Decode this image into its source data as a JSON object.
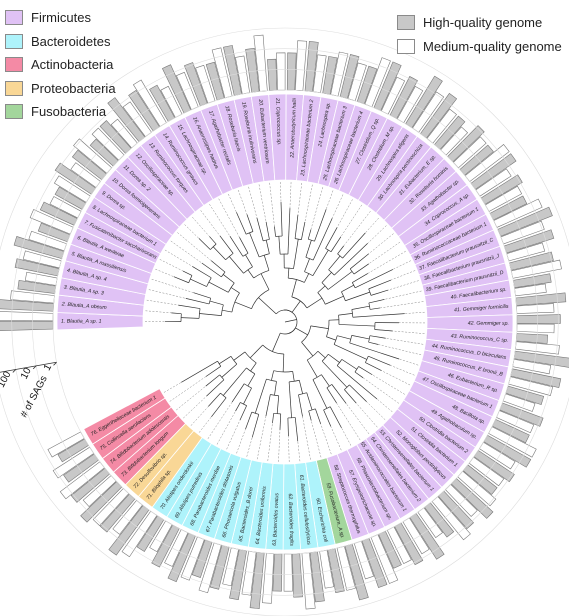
{
  "legend_phyla": [
    {
      "name": "Firmicutes",
      "color": "#e0c2f5"
    },
    {
      "name": "Bacteroidetes",
      "color": "#aef3fb"
    },
    {
      "name": "Actinobacteria",
      "color": "#f48aa5"
    },
    {
      "name": "Proteobacteria",
      "color": "#f9d796"
    },
    {
      "name": "Fusobacteria",
      "color": "#a3d69c"
    }
  ],
  "legend_quality": [
    {
      "name": "High-quality genome",
      "color": "#c8c8c8"
    },
    {
      "name": "Medium-quality genome",
      "color": "#ffffff"
    }
  ],
  "scale": {
    "ticks": [
      "1000",
      "100",
      "10",
      "1"
    ],
    "label": "# of SAGs"
  },
  "colors": {
    "bar_high": "#c8c8c8",
    "bar_medium": "#ffffff",
    "bar_stroke": "#777777",
    "tree": "#333333"
  },
  "taxa": [
    {
      "n": 1,
      "label": "1. Blautia_A sp. 1",
      "phylum": "Firmicutes",
      "high": 1,
      "med": 1
    },
    {
      "n": 2,
      "label": "2. Blautia_A obeum",
      "phylum": "Firmicutes",
      "high": 0.9,
      "med": 0.7
    },
    {
      "n": 3,
      "label": "3. Blautia_A sp. 3",
      "phylum": "Firmicutes",
      "high": 0.6,
      "med": 0.5
    },
    {
      "n": 4,
      "label": "4. Blautia_A sp. 4",
      "phylum": "Firmicutes",
      "high": 0.7,
      "med": 0.6
    },
    {
      "n": 5,
      "label": "5. Blautia_A massiliensis",
      "phylum": "Firmicutes",
      "high": 0.8,
      "med": 0.6
    },
    {
      "n": 6,
      "label": "6. Blautia_A wexlerae",
      "phylum": "Firmicutes",
      "high": 0.5,
      "med": 0.7
    },
    {
      "n": 7,
      "label": "7. Fusicatenibacter saccharivorans",
      "phylum": "Firmicutes",
      "high": 0.6,
      "med": 0.5
    },
    {
      "n": 8,
      "label": "8. Lachnospiraceae bacterium 1",
      "phylum": "Firmicutes",
      "high": 0.5,
      "med": 0.6
    },
    {
      "n": 9,
      "label": "9. Dorea sp.",
      "phylum": "Firmicutes",
      "high": 0.7,
      "med": 0.5
    },
    {
      "n": 10,
      "label": "10. Dorea formicigenerans",
      "phylum": "Firmicutes",
      "high": 0.6,
      "med": 0.7
    },
    {
      "n": 11,
      "label": "11. Dorea sp. 2",
      "phylum": "Firmicutes",
      "high": 0.5,
      "med": 0.6
    },
    {
      "n": 12,
      "label": "12. Oscillospiraceae sp.",
      "phylum": "Firmicutes",
      "high": 0.6,
      "med": 0.5
    },
    {
      "n": 13,
      "label": "13. Ruminococcus torques",
      "phylum": "Firmicutes",
      "high": 0.8,
      "med": 0.6
    },
    {
      "n": 14,
      "label": "14. Ruminococcus gnavus",
      "phylum": "Firmicutes",
      "high": 0.7,
      "med": 0.8
    },
    {
      "n": 15,
      "label": "15. Lachnospiraceae sp.",
      "phylum": "Firmicutes",
      "high": 0.6,
      "med": 0.5
    },
    {
      "n": 16,
      "label": "16. Anaerostipes hadrus",
      "phylum": "Firmicutes",
      "high": 0.8,
      "med": 0.6
    },
    {
      "n": 17,
      "label": "17. Agathobacter rectalis",
      "phylum": "Firmicutes",
      "high": 0.7,
      "med": 0.6
    },
    {
      "n": 18,
      "label": "18. Roseburia faecis",
      "phylum": "Firmicutes",
      "high": 0.6,
      "med": 0.8
    },
    {
      "n": 19,
      "label": "19. Roseburia inulinivorans",
      "phylum": "Firmicutes",
      "high": 0.8,
      "med": 0.6
    },
    {
      "n": 20,
      "label": "20. Eubacterium ventriosum",
      "phylum": "Firmicutes",
      "high": 0.7,
      "med": 0.9
    },
    {
      "n": 21,
      "label": "21. Coprococcus sp.",
      "phylum": "Firmicutes",
      "high": 0.5,
      "med": 0.6
    },
    {
      "n": 22,
      "label": "22. Anaerobutyricum hallii",
      "phylum": "Firmicutes",
      "high": 0.6,
      "med": 0.8
    },
    {
      "n": 23,
      "label": "23. Lachnospiraceae bacterium 2",
      "phylum": "Firmicutes",
      "high": 0.8,
      "med": 0.6
    },
    {
      "n": 24,
      "label": "24. Lachnospira sp.",
      "phylum": "Firmicutes",
      "high": 0.6,
      "med": 0.7
    },
    {
      "n": 25,
      "label": "25. Lachnospiraceae bacterium 3",
      "phylum": "Firmicutes",
      "high": 0.7,
      "med": 0.6
    },
    {
      "n": 26,
      "label": "26. Lachnospiraceae bacterium 4",
      "phylum": "Firmicutes",
      "high": 0.6,
      "med": 0.8
    },
    {
      "n": 27,
      "label": "27. Clostridium_Q sp.",
      "phylum": "Firmicutes",
      "high": 0.8,
      "med": 0.6
    },
    {
      "n": 28,
      "label": "28. Clostridium_M sp.",
      "phylum": "Firmicutes",
      "high": 0.7,
      "med": 0.6
    },
    {
      "n": 29,
      "label": "29. Lachnospira eligens",
      "phylum": "Firmicutes",
      "high": 0.9,
      "med": 0.7
    },
    {
      "n": 30,
      "label": "30. Lachnospira pectinoschiza",
      "phylum": "Firmicutes",
      "high": 0.8,
      "med": 0.6
    },
    {
      "n": 31,
      "label": "31. Eubacterium_E sp.",
      "phylum": "Firmicutes",
      "high": 0.6,
      "med": 0.5
    },
    {
      "n": 32,
      "label": "32. Roseburia hominis",
      "phylum": "Firmicutes",
      "high": 0.7,
      "med": 0.6
    },
    {
      "n": 33,
      "label": "33. Agathobacter sp.",
      "phylum": "Firmicutes",
      "high": 0.6,
      "med": 0.8
    },
    {
      "n": 34,
      "label": "34. Coprococcus_A sp.",
      "phylum": "Firmicutes",
      "high": 0.8,
      "med": 0.6
    },
    {
      "n": 35,
      "label": "35. Oscillospiraceae bacterium 1",
      "phylum": "Firmicutes",
      "high": 0.7,
      "med": 0.6
    },
    {
      "n": 36,
      "label": "36. Ruminococcaceae bacterium 1",
      "phylum": "Firmicutes",
      "high": 0.6,
      "med": 0.8
    },
    {
      "n": 37,
      "label": "37. Faecalibacterium prausnitzii_C",
      "phylum": "Firmicutes",
      "high": 0.9,
      "med": 0.7
    },
    {
      "n": 38,
      "label": "38. Faecalibacterium prausnitzii_J",
      "phylum": "Firmicutes",
      "high": 0.8,
      "med": 0.6
    },
    {
      "n": 39,
      "label": "39. Faecalibacterium prausnitzii_D",
      "phylum": "Firmicutes",
      "high": 0.7,
      "med": 0.8
    },
    {
      "n": 40,
      "label": "40. Faecalibacterium sp.",
      "phylum": "Firmicutes",
      "high": 0.6,
      "med": 0.5
    },
    {
      "n": 41,
      "label": "41. Gemmiger formicilis",
      "phylum": "Firmicutes",
      "high": 0.8,
      "med": 0.6
    },
    {
      "n": 42,
      "label": "42. Gemmiger sp.",
      "phylum": "Firmicutes",
      "high": 0.7,
      "med": 0.6
    },
    {
      "n": 43,
      "label": "43. Ruminococcus_C sp.",
      "phylum": "Firmicutes",
      "high": 0.5,
      "med": 0.7
    },
    {
      "n": 44,
      "label": "44. Ruminococcus_D bicirculans",
      "phylum": "Firmicutes",
      "high": 0.9,
      "med": 0.6
    },
    {
      "n": 45,
      "label": "45. Ruminococcus_E bromii_B",
      "phylum": "Firmicutes",
      "high": 0.8,
      "med": 0.7
    },
    {
      "n": 46,
      "label": "46. Eubacterium_R sp.",
      "phylum": "Firmicutes",
      "high": 0.6,
      "med": 0.5
    },
    {
      "n": 47,
      "label": "47. Oscillospiraceae bacterium 1",
      "phylum": "Firmicutes",
      "high": 0.7,
      "med": 0.6
    },
    {
      "n": 48,
      "label": "48. Bacillota sp.",
      "phylum": "Firmicutes",
      "high": 0.6,
      "med": 0.8
    },
    {
      "n": 49,
      "label": "49. Agathobaculum sp.",
      "phylum": "Firmicutes",
      "high": 0.8,
      "med": 0.6
    },
    {
      "n": 50,
      "label": "50. Clostridia bacterium 2",
      "phylum": "Firmicutes",
      "high": 0.7,
      "med": 0.6
    },
    {
      "n": 51,
      "label": "51. Clostridia bacterium 1",
      "phylum": "Firmicutes",
      "high": 0.6,
      "med": 0.7
    },
    {
      "n": 52,
      "label": "52. Monoglobus pectinilyticus",
      "phylum": "Firmicutes",
      "high": 0.8,
      "med": 0.6
    },
    {
      "n": 53,
      "label": "53. Christensenellales bacterium 1",
      "phylum": "Firmicutes",
      "high": 0.7,
      "med": 0.8
    },
    {
      "n": 54,
      "label": "54. Christensenellales bacterium 2",
      "phylum": "Firmicutes",
      "high": 0.6,
      "med": 0.5
    },
    {
      "n": 55,
      "label": "55. Acidaminococcales bacterium 1",
      "phylum": "Firmicutes",
      "high": 0.8,
      "med": 0.6
    },
    {
      "n": 56,
      "label": "56. Phascolarctobacterium sp.",
      "phylum": "Firmicutes",
      "high": 0.7,
      "med": 0.6
    },
    {
      "n": 57,
      "label": "57. Erysipelotrichaceae sp.",
      "phylum": "Firmicutes",
      "high": 0.6,
      "med": 0.8
    },
    {
      "n": 58,
      "label": "58. Streptococcus thermophilus",
      "phylum": "Firmicutes",
      "high": 0.8,
      "med": 0.6
    },
    {
      "n": 59,
      "label": "59. Fusobacterium_A sp.",
      "phylum": "Fusobacteria",
      "high": 0.9,
      "med": 0.7
    },
    {
      "n": 60,
      "label": "60. Escherichia coli",
      "phylum": "Bacteroidetes",
      "high": 0.7,
      "med": 0.6
    },
    {
      "n": 61,
      "label": "61. Bacteroides cellulosilyticus",
      "phylum": "Bacteroidetes",
      "high": 0.8,
      "med": 0.9
    },
    {
      "n": 62,
      "label": "62. Bacteroides fragilis",
      "phylum": "Bacteroidetes",
      "high": 0.7,
      "med": 0.6
    },
    {
      "n": 63,
      "label": "63. Bacteroides ovatus",
      "phylum": "Bacteroidetes",
      "high": 0.6,
      "med": 0.8
    },
    {
      "n": 64,
      "label": "64. Bacteroides uniformis",
      "phylum": "Bacteroidetes",
      "high": 0.9,
      "med": 0.7
    },
    {
      "n": 65,
      "label": "65. Bacteroides_B dorei",
      "phylum": "Bacteroidetes",
      "high": 0.8,
      "med": 0.6
    },
    {
      "n": 66,
      "label": "66. Phocaeicola vulgatus",
      "phylum": "Bacteroidetes",
      "high": 0.7,
      "med": 0.8
    },
    {
      "n": 67,
      "label": "67. Parabacteroides distasonis",
      "phylum": "Bacteroidetes",
      "high": 0.6,
      "med": 0.7
    },
    {
      "n": 68,
      "label": "68. Parabacteroides merdae",
      "phylum": "Bacteroidetes",
      "high": 0.8,
      "med": 0.6
    },
    {
      "n": 69,
      "label": "69. Alistipes putredinis",
      "phylum": "Bacteroidetes",
      "high": 0.7,
      "med": 0.5
    },
    {
      "n": 70,
      "label": "70. Alistipes onderdonkii",
      "phylum": "Bacteroidetes",
      "high": 0.6,
      "med": 0.8
    },
    {
      "n": 71,
      "label": "71. Bilophila sp.",
      "phylum": "Proteobacteria",
      "high": 0.9,
      "med": 0.6
    },
    {
      "n": 72,
      "label": "72. Desulfovibrio sp.",
      "phylum": "Proteobacteria",
      "high": 0.7,
      "med": 0.7
    },
    {
      "n": 73,
      "label": "73. Bifidobacterium longum",
      "phylum": "Actinobacteria",
      "high": 0.8,
      "med": 0.6
    },
    {
      "n": 74,
      "label": "74. Bifidobacterium adolescentis",
      "phylum": "Actinobacteria",
      "high": 0.7,
      "med": 0.8
    },
    {
      "n": 75,
      "label": "75. Collinsella aerofaciens",
      "phylum": "Actinobacteria",
      "high": 0.6,
      "med": 0.7
    },
    {
      "n": 76,
      "label": "76. Eggerthellaceae bacterium 1",
      "phylum": "Actinobacteria",
      "high": 0.5,
      "med": 0.6
    }
  ]
}
